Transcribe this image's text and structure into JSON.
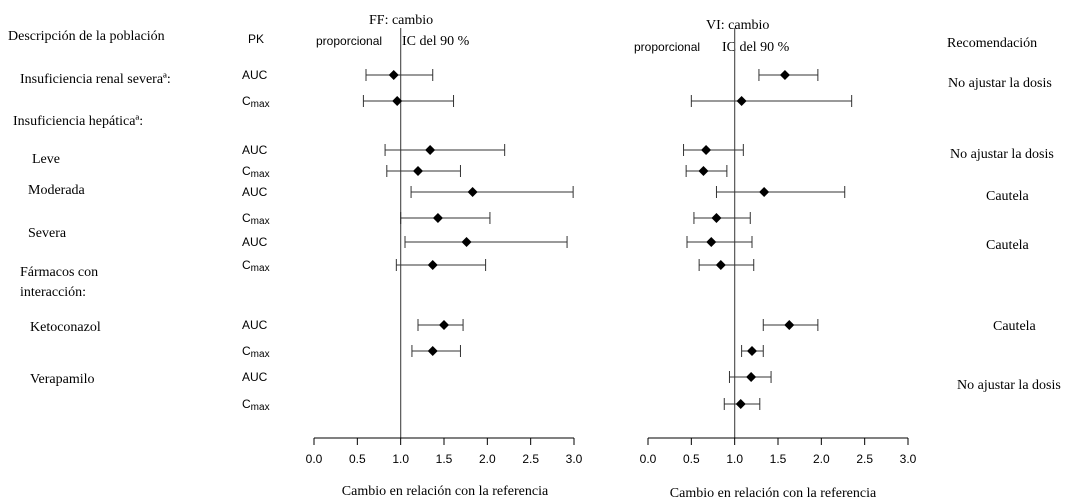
{
  "headers": {
    "population": "Descripción de la población",
    "pk": "PK",
    "recommendation": "Recomendación"
  },
  "row_labels": [
    {
      "text": "Insuficiencia renal severaª:"
    },
    {
      "text": "Insuficiencia hepáticaª:"
    },
    {
      "text": "Leve"
    },
    {
      "text": "Moderada"
    },
    {
      "text": "Severa"
    },
    {
      "text": "Fármacos con"
    },
    {
      "text": "interacción:"
    },
    {
      "text": "Ketoconazol"
    },
    {
      "text": "Verapamilo"
    }
  ],
  "pk_labels": [
    "AUC",
    "Cmax",
    "AUC",
    "Cmax",
    "AUC",
    "Cmax",
    "AUC",
    "Cmax",
    "AUC",
    "Cmax",
    "AUC",
    "Cmax"
  ],
  "recommendations": [
    "No ajustar la dosis",
    "No ajustar la dosis",
    "Cautela",
    "Cautela",
    "Cautela",
    "No ajustar la dosis"
  ],
  "chart_data": [
    {
      "type": "forest",
      "title": "FF: cambio",
      "subtitle_a": "proporcional",
      "subtitle_b": "IC del 90 %",
      "xlabel": "Cambio en relación con la referencia",
      "xlim": [
        0,
        3
      ],
      "ticks": [
        "0.0",
        "0.5",
        "1.0",
        "1.5",
        "2.0",
        "2.5",
        "3.0"
      ],
      "reference_line": 1.0,
      "points": [
        {
          "est": 0.92,
          "lo": 0.6,
          "hi": 1.37
        },
        {
          "est": 0.96,
          "lo": 0.57,
          "hi": 1.61
        },
        {
          "est": 1.34,
          "lo": 0.82,
          "hi": 2.2
        },
        {
          "est": 1.2,
          "lo": 0.84,
          "hi": 1.69
        },
        {
          "est": 1.83,
          "lo": 1.12,
          "hi": 2.99
        },
        {
          "est": 1.43,
          "lo": 1.0,
          "hi": 2.03
        },
        {
          "est": 1.76,
          "lo": 1.05,
          "hi": 2.92
        },
        {
          "est": 1.37,
          "lo": 0.95,
          "hi": 1.98
        },
        {
          "est": 1.5,
          "lo": 1.2,
          "hi": 1.72
        },
        {
          "est": 1.37,
          "lo": 1.13,
          "hi": 1.69
        },
        null,
        null
      ]
    },
    {
      "type": "forest",
      "title": "VI: cambio",
      "subtitle_a": "proporcional",
      "subtitle_b": "IC del 90 %",
      "xlabel": "Cambio en relación con la referencia",
      "xlim": [
        0,
        3
      ],
      "ticks": [
        "0.0",
        "0.5",
        "1.0",
        "1.5",
        "2.0",
        "2.5",
        "3.0"
      ],
      "reference_line": 1.0,
      "points": [
        {
          "est": 1.58,
          "lo": 1.28,
          "hi": 1.96
        },
        {
          "est": 1.08,
          "lo": 0.5,
          "hi": 2.35
        },
        {
          "est": 0.67,
          "lo": 0.41,
          "hi": 1.1
        },
        {
          "est": 0.64,
          "lo": 0.44,
          "hi": 0.91
        },
        {
          "est": 1.34,
          "lo": 0.79,
          "hi": 2.27
        },
        {
          "est": 0.79,
          "lo": 0.53,
          "hi": 1.18
        },
        {
          "est": 0.73,
          "lo": 0.45,
          "hi": 1.2
        },
        {
          "est": 0.84,
          "lo": 0.59,
          "hi": 1.22
        },
        {
          "est": 1.63,
          "lo": 1.33,
          "hi": 1.96
        },
        {
          "est": 1.2,
          "lo": 1.08,
          "hi": 1.33
        },
        {
          "est": 1.19,
          "lo": 0.94,
          "hi": 1.42
        },
        {
          "est": 1.07,
          "lo": 0.88,
          "hi": 1.29
        }
      ]
    }
  ]
}
